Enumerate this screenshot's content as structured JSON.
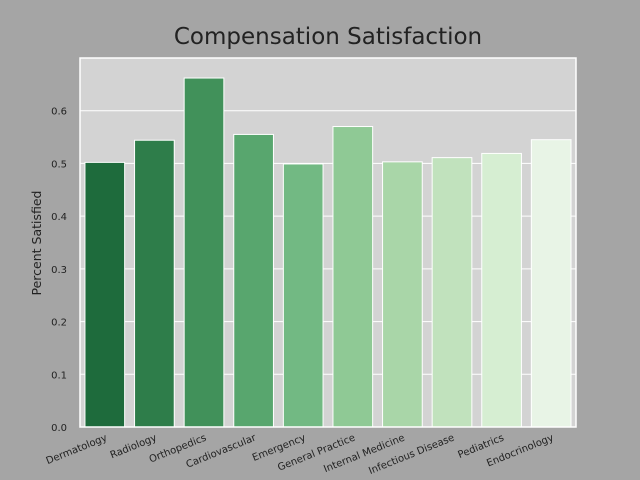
{
  "chart_data": {
    "type": "bar",
    "title": "Compensation Satisfaction",
    "xlabel": "",
    "ylabel": "Percent Satisfied",
    "categories": [
      "Dermatology",
      "Radiology",
      "Orthopedics",
      "Cardiovascular",
      "Emergency",
      "General Practice",
      "Internal Medicine",
      "Infectious Disease",
      "Pediatrics",
      "Endocrinology"
    ],
    "values": [
      0.502,
      0.544,
      0.662,
      0.555,
      0.499,
      0.57,
      0.503,
      0.511,
      0.519,
      0.545
    ],
    "ylim": [
      0,
      0.7
    ],
    "yticks": [
      "0.0",
      "0.1",
      "0.2",
      "0.3",
      "0.4",
      "0.5",
      "0.6"
    ],
    "grid": true,
    "colors": [
      "#1e6b3c",
      "#2e7d4a",
      "#41915a",
      "#58a66e",
      "#72b983",
      "#8fc995",
      "#a9d6a8",
      "#c1e2bd",
      "#d6eed2",
      "#e8f4e6"
    ],
    "background": "#d3d3d3",
    "figure_background": "#a5a5a5"
  }
}
